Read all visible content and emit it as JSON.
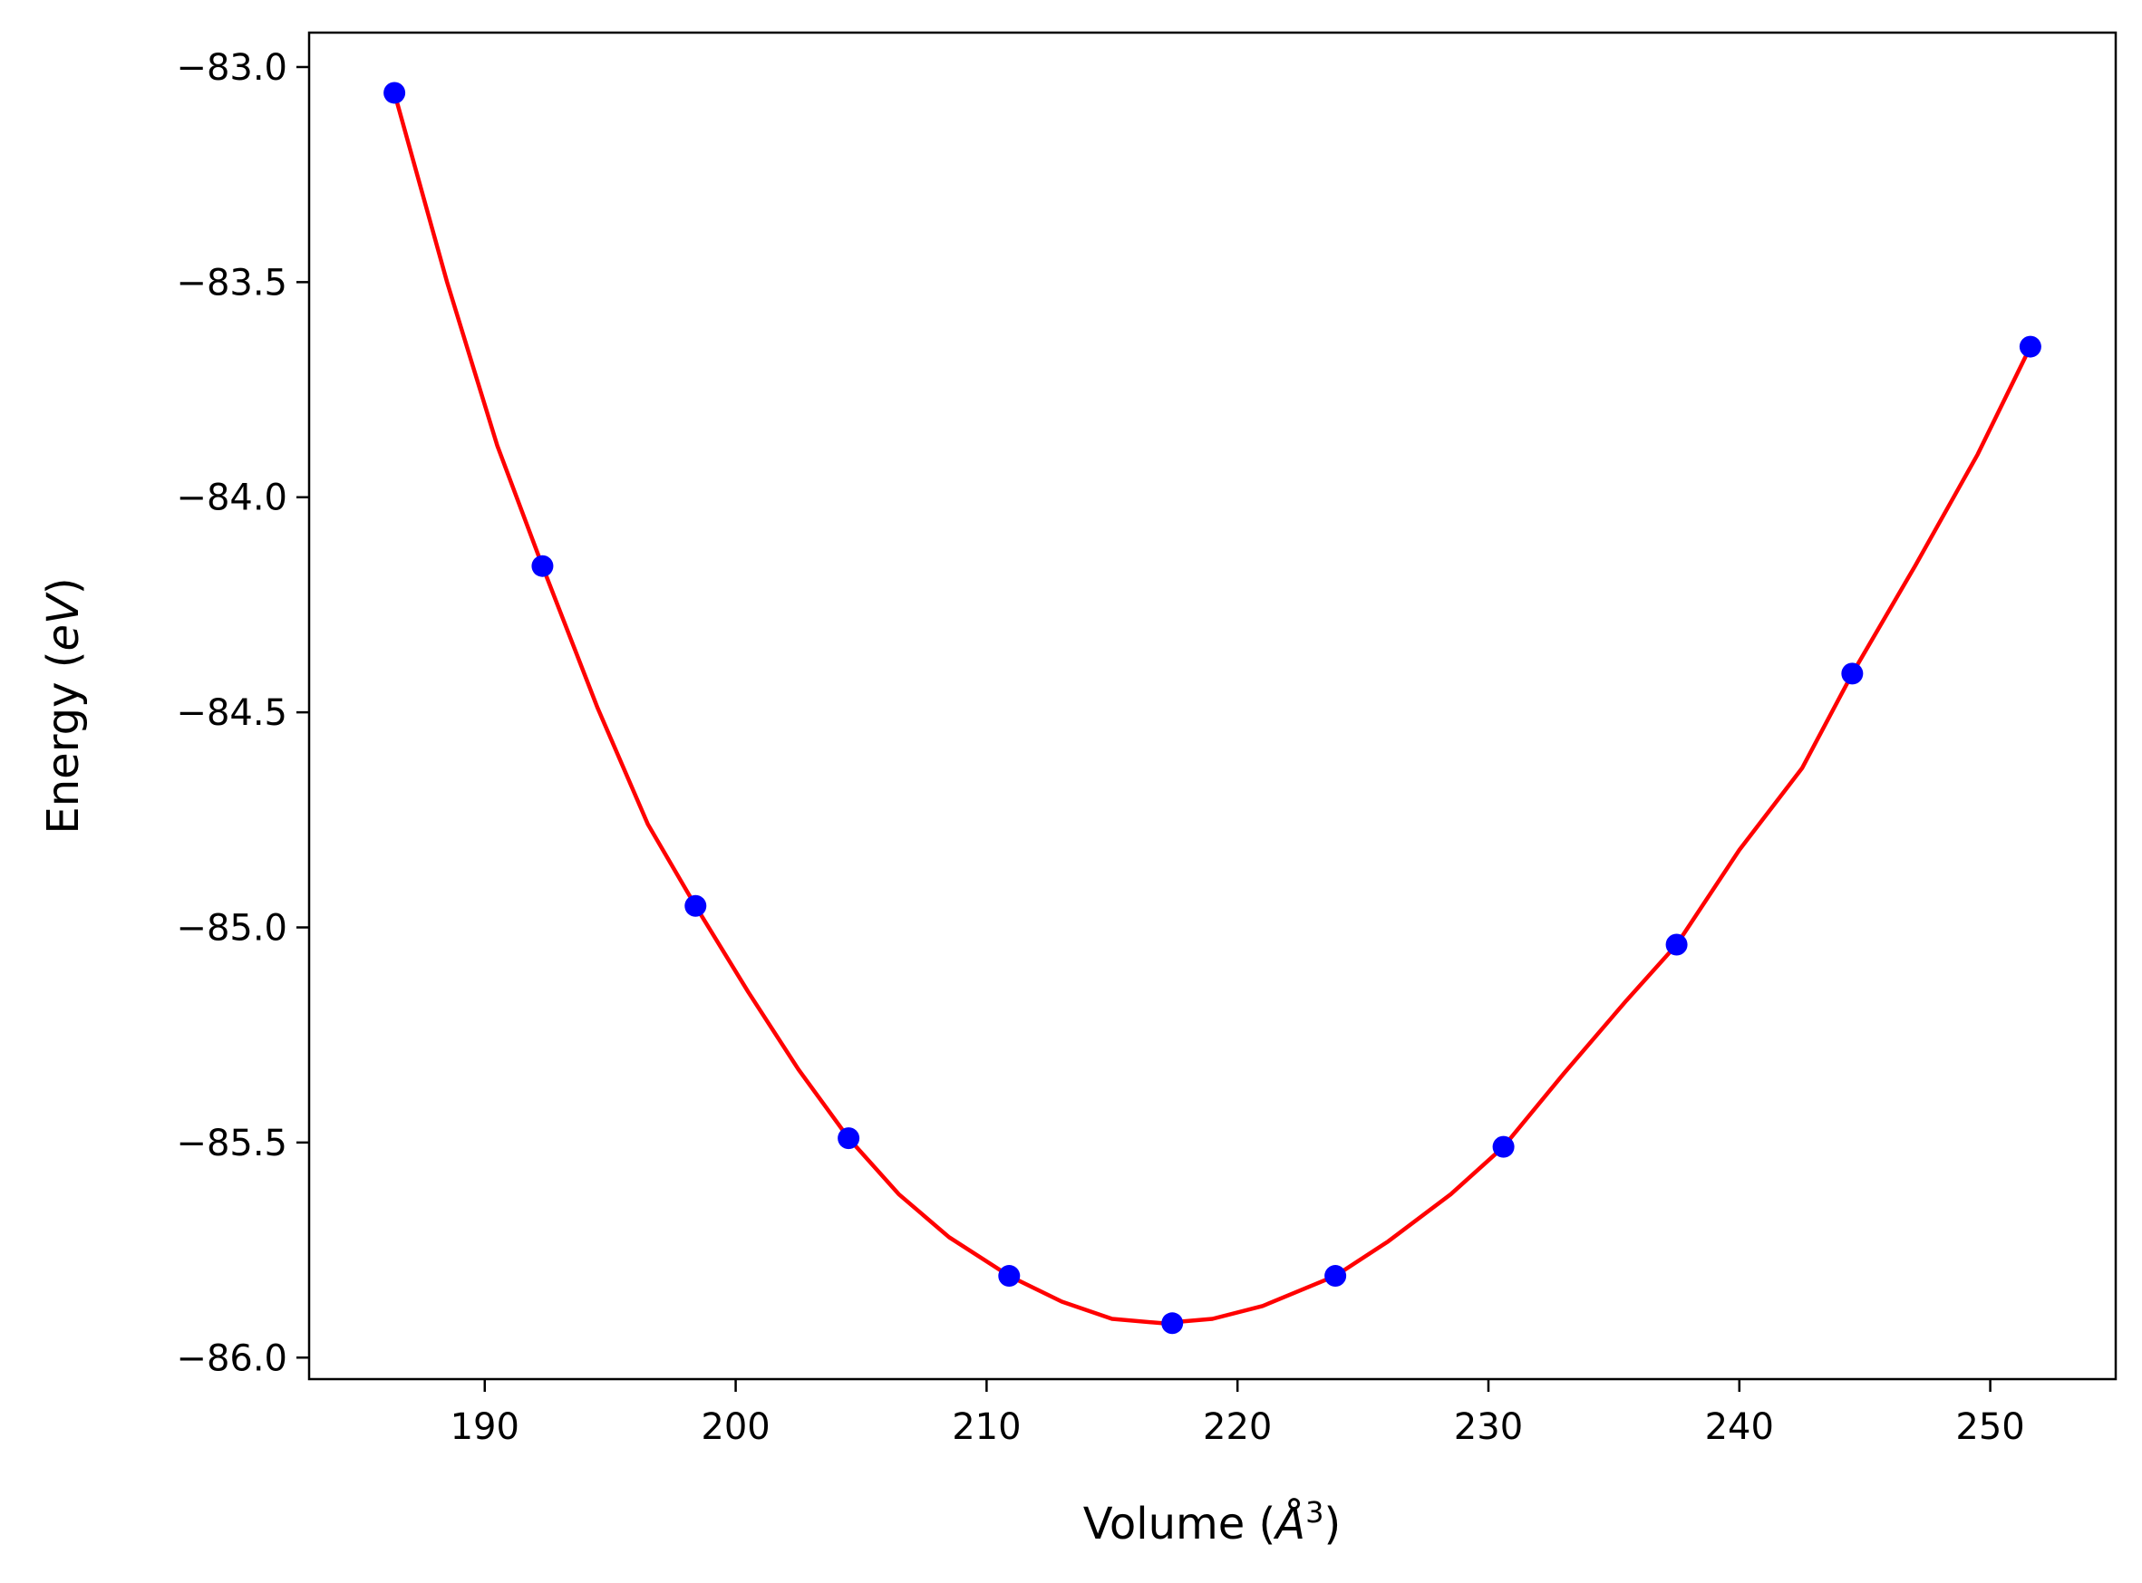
{
  "chart_data": {
    "type": "scatter",
    "title": "",
    "xlabel": {
      "main": "Volume (",
      "italic": "Å",
      "sup": "3",
      "close": ")"
    },
    "ylabel": {
      "main": "Energy (",
      "italic": "eV",
      "close": ")"
    },
    "xlim": [
      183,
      255
    ],
    "ylim": [
      -86.05,
      -82.92
    ],
    "x_ticks": [
      190,
      200,
      210,
      220,
      230,
      240,
      250
    ],
    "x_tick_labels": [
      "190",
      "200",
      "210",
      "220",
      "230",
      "240",
      "250"
    ],
    "y_ticks": [
      -83.0,
      -83.5,
      -84.0,
      -84.5,
      -85.0,
      -85.5,
      -86.0
    ],
    "y_tick_labels": [
      "−83.0",
      "−83.5",
      "−84.0",
      "−84.5",
      "−85.0",
      "−85.5",
      "−86.0"
    ],
    "grid": false,
    "series": [
      {
        "style": "points",
        "color": "#0000ff",
        "x": [
          186.4,
          192.3,
          198.4,
          204.5,
          210.9,
          217.4,
          223.9,
          230.6,
          237.5,
          244.5,
          251.6
        ],
        "y": [
          -83.06,
          -84.16,
          -84.95,
          -85.49,
          -85.81,
          -85.92,
          -85.81,
          -85.51,
          -85.04,
          -84.41,
          -83.65
        ]
      },
      {
        "style": "line",
        "color": "#ff0000",
        "x": [
          186.4,
          188.5,
          190.5,
          192.3,
          194.5,
          196.5,
          198.4,
          200.5,
          202.5,
          204.5,
          206.5,
          208.5,
          210.9,
          213.0,
          215.0,
          217.0,
          219.0,
          221.0,
          223.9,
          226.0,
          228.5,
          230.6,
          233.0,
          235.5,
          237.5,
          240.0,
          242.5,
          244.5,
          247.0,
          249.5,
          251.6
        ],
        "y": [
          -83.06,
          -83.5,
          -83.88,
          -84.16,
          -84.49,
          -84.76,
          -84.95,
          -85.15,
          -85.33,
          -85.49,
          -85.62,
          -85.72,
          -85.81,
          -85.87,
          -85.91,
          -85.92,
          -85.91,
          -85.88,
          -85.81,
          -85.73,
          -85.62,
          -85.51,
          -85.34,
          -85.17,
          -85.04,
          -84.82,
          -84.63,
          -84.41,
          -84.16,
          -83.9,
          -83.65
        ]
      }
    ]
  }
}
